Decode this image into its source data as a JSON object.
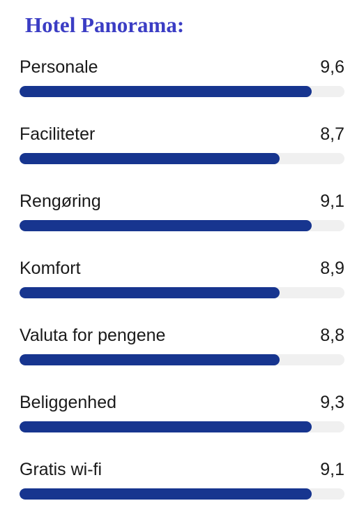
{
  "title": "Hotel Panorama:",
  "colors": {
    "title": "#3b3dc4",
    "bar_fill": "#17358f",
    "bar_track": "#f0f0f0"
  },
  "scores": [
    {
      "label": "Personale",
      "value": "9,6",
      "fill_fraction": 0.9
    },
    {
      "label": "Faciliteter",
      "value": "8,7",
      "fill_fraction": 0.8
    },
    {
      "label": "Rengøring",
      "value": "9,1",
      "fill_fraction": 0.9
    },
    {
      "label": "Komfort",
      "value": "8,9",
      "fill_fraction": 0.8
    },
    {
      "label": "Valuta for pengene",
      "value": "8,8",
      "fill_fraction": 0.8
    },
    {
      "label": "Beliggenhed",
      "value": "9,3",
      "fill_fraction": 0.9
    },
    {
      "label": "Gratis wi-fi",
      "value": "9,1",
      "fill_fraction": 0.9
    }
  ]
}
